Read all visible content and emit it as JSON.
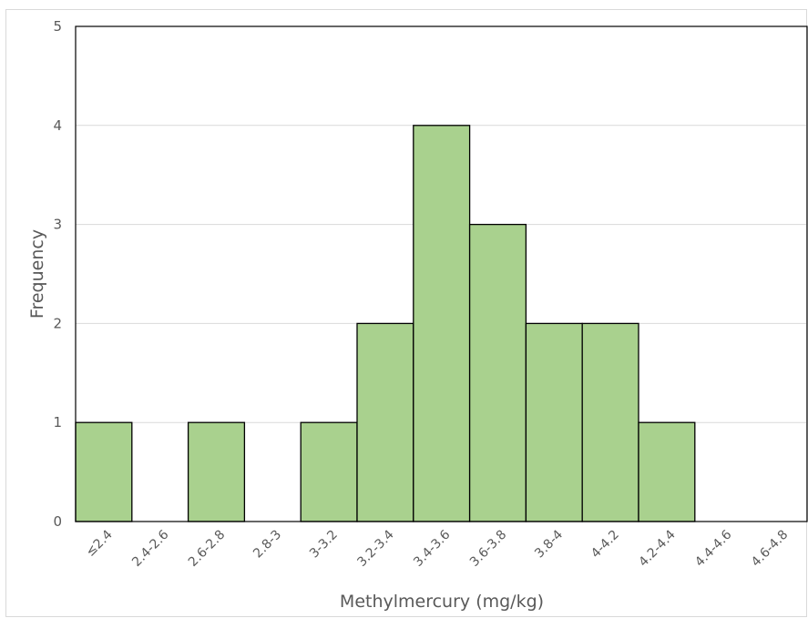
{
  "chart_data": {
    "type": "bar",
    "title": "",
    "xlabel": "Methylmercury (mg/kg)",
    "ylabel": "Frequency",
    "categories": [
      "≤2.4",
      "2.4-2.6",
      "2.6-2.8",
      "2.8-3",
      "3-3.2",
      "3.2-3.4",
      "3.4-3.6",
      "3.6-3.8",
      "3.8-4",
      "4-4.2",
      "4.2-4.4",
      "4.4-4.6",
      "4.6-4.8"
    ],
    "values": [
      1,
      0,
      1,
      0,
      1,
      2,
      4,
      3,
      2,
      2,
      1,
      0,
      0
    ],
    "ylim": [
      0,
      5
    ],
    "yticks": [
      "0",
      "1",
      "2",
      "3",
      "4",
      "5"
    ],
    "grid": true,
    "legend": "none",
    "bar_color": "#a9d18e",
    "bar_edge_color": "#000000"
  }
}
